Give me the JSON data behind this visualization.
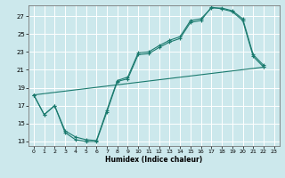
{
  "xlabel": "Humidex (Indice chaleur)",
  "bg_color": "#cce8ec",
  "line_color": "#1a7a6e",
  "grid_color": "#ffffff",
  "xlim": [
    -0.5,
    23.5
  ],
  "ylim": [
    12.5,
    28.2
  ],
  "xticks": [
    0,
    1,
    2,
    3,
    4,
    5,
    6,
    7,
    8,
    9,
    10,
    11,
    12,
    13,
    14,
    15,
    16,
    17,
    18,
    19,
    20,
    21,
    22,
    23
  ],
  "yticks": [
    13,
    15,
    17,
    19,
    21,
    23,
    25,
    27
  ],
  "curve1_x": [
    0,
    1,
    2,
    3,
    4,
    5,
    6,
    7,
    8,
    9,
    10,
    11,
    12,
    13,
    14,
    15,
    16,
    17,
    18,
    19,
    20,
    21,
    22
  ],
  "curve1_y": [
    18.2,
    16.0,
    17.0,
    14.0,
    13.2,
    13.0,
    13.0,
    16.3,
    19.7,
    20.0,
    22.7,
    22.8,
    23.5,
    24.1,
    24.5,
    26.3,
    26.5,
    28.0,
    27.8,
    27.5,
    26.5,
    22.5,
    21.3
  ],
  "curve2_x": [
    0,
    1,
    2,
    3,
    4,
    5,
    6,
    7,
    8,
    9,
    10,
    11,
    12,
    13,
    14,
    15,
    16,
    17,
    18,
    19,
    20,
    21,
    22
  ],
  "curve2_y": [
    18.2,
    16.0,
    17.0,
    14.2,
    13.5,
    13.2,
    13.1,
    16.5,
    19.8,
    20.2,
    22.9,
    23.0,
    23.7,
    24.3,
    24.7,
    26.5,
    26.7,
    27.9,
    27.9,
    27.6,
    26.7,
    22.7,
    21.5
  ],
  "curve3_x": [
    0,
    22
  ],
  "curve3_y": [
    18.2,
    21.3
  ]
}
